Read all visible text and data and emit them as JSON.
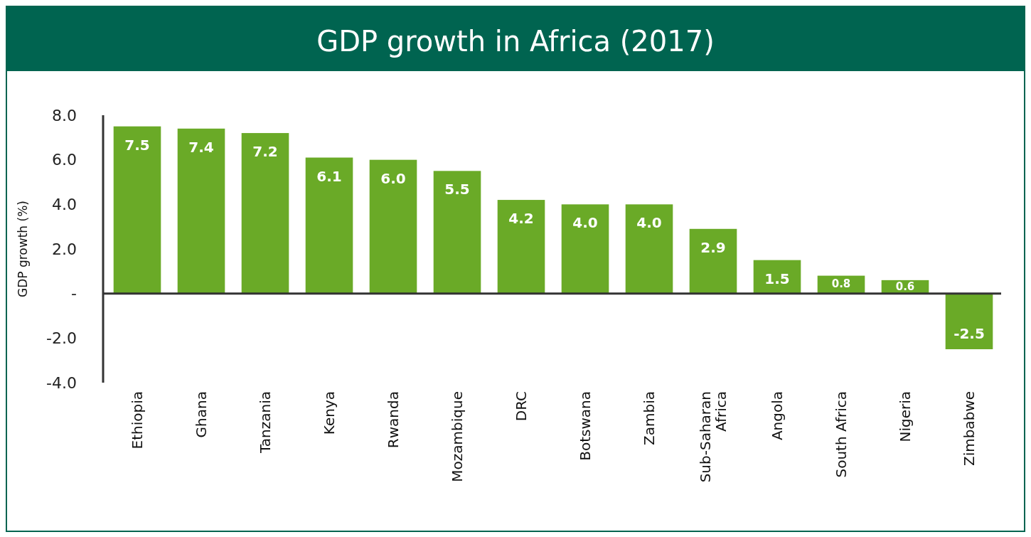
{
  "chart_data": {
    "type": "bar",
    "title": "GDP growth in Africa (2017)",
    "ylabel": "GDP growth (%)",
    "categories": [
      "Ethiopia",
      "Ghana",
      "Tanzania",
      "Kenya",
      "Rwanda",
      "Mozambique",
      "DRC",
      "Botswana",
      "Zambia",
      "Sub-Saharan Africa",
      "Angola",
      "South Africa",
      "Nigeria",
      "Zimbabwe"
    ],
    "values": [
      7.5,
      7.4,
      7.2,
      6.1,
      6.0,
      5.5,
      4.2,
      4.0,
      4.0,
      2.9,
      1.5,
      0.8,
      0.6,
      -2.5
    ],
    "value_labels": [
      "7.5",
      "7.4",
      "7.2",
      "6.1",
      "6.0",
      "5.5",
      "4.2",
      "4.0",
      "4.0",
      "2.9",
      "1.5",
      "0.8",
      "0.6",
      "-2.5"
    ],
    "color": "#6aaa27",
    "ylim": [
      -4,
      8
    ],
    "yticks": [
      {
        "value": -4,
        "label": "-4.0"
      },
      {
        "value": -2,
        "label": "-2.0"
      },
      {
        "value": 0,
        "label": "-"
      },
      {
        "value": 2,
        "label": "2.0"
      },
      {
        "value": 4,
        "label": "4.0"
      },
      {
        "value": 6,
        "label": "6.0"
      },
      {
        "value": 8,
        "label": "8.0"
      }
    ],
    "legend": false
  }
}
